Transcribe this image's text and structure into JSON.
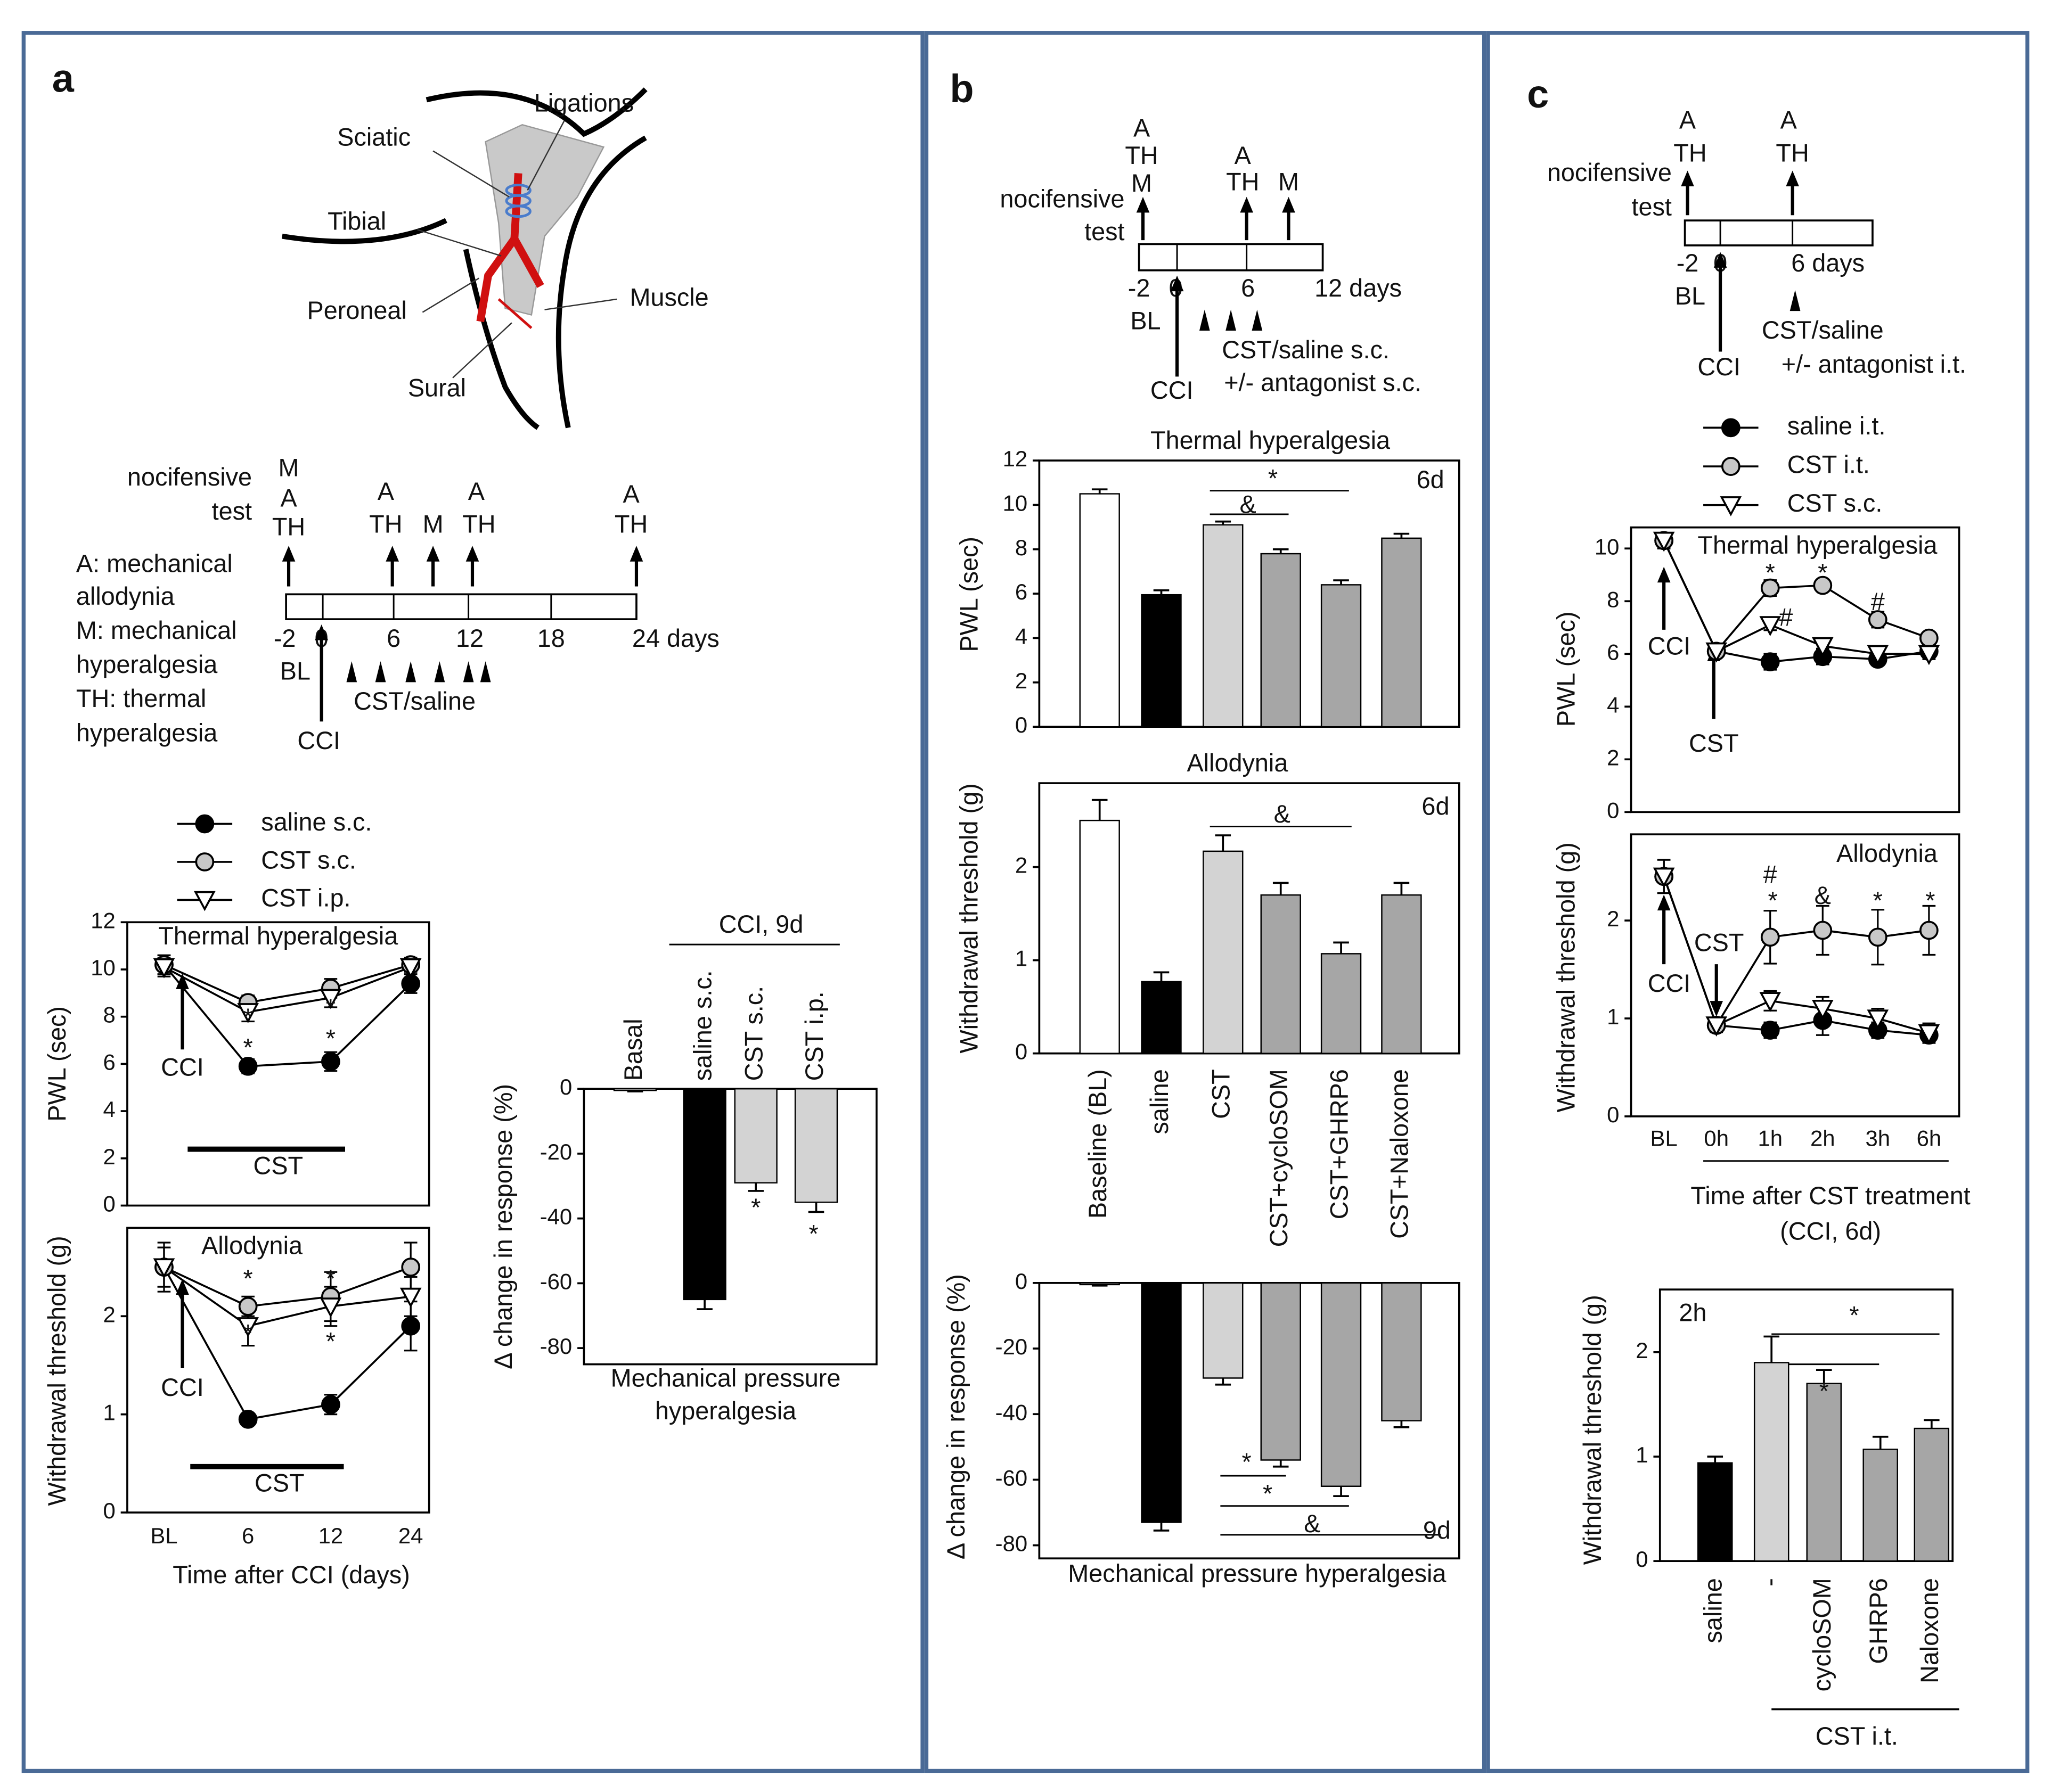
{
  "diagrams": {
    "panel_letters": [
      "a",
      "b",
      "c"
    ],
    "a_anatomy": [
      "Ligations",
      "Sciatic",
      "Tibial",
      "Peroneal",
      "Muscle",
      "Sural"
    ],
    "a_timeline": [
      "nocifensive",
      "test",
      "M",
      "A",
      "TH",
      "A",
      "TH",
      "M",
      "A",
      "TH",
      "A",
      "TH",
      "A: mechanical",
      "allodynia",
      "M: mechanical",
      "hyperalgesia",
      "TH: thermal",
      "hyperalgesia",
      "-2",
      "0",
      "6",
      "12",
      "18",
      "24 days",
      "BL",
      "CST/saline",
      "CCI"
    ],
    "b_timeline": [
      "A",
      "TH",
      "M",
      "nocifensive",
      "test",
      "A",
      "TH",
      "M",
      "-2",
      "0",
      "6",
      "12 days",
      "BL",
      "CST/saline s.c.",
      "+/- antagonist s.c.",
      "CCI"
    ],
    "c_timeline": [
      "A",
      "TH",
      "nocifensive",
      "test",
      "A",
      "TH",
      "-2",
      "0",
      "6 days",
      "BL",
      "CST/saline",
      "+/- antagonist i.t.",
      "CCI"
    ]
  },
  "chart_data": [
    {
      "type": "line",
      "title": "Thermal hyperalgesia",
      "ylabel": "PWL (sec)",
      "ylim": [
        0,
        12
      ],
      "yticks": [
        0,
        2,
        4,
        6,
        8,
        10,
        12
      ],
      "series": [
        {
          "name": "saline s.c.",
          "color": "#000000",
          "marker": "circle",
          "values": [
            10.2,
            5.9,
            6.1,
            9.4
          ],
          "errors": [
            0.4,
            0.3,
            0.4,
            0.4
          ]
        },
        {
          "name": "CST s.c.",
          "color": "#c8c8c8",
          "marker": "circle",
          "values": [
            10.2,
            8.6,
            9.2,
            10.2
          ],
          "errors": [
            0.4,
            0.3,
            0.4,
            0.3
          ]
        },
        {
          "name": "CST i.p.",
          "color": "#ffffff",
          "marker": "triangle-down",
          "values": [
            10.1,
            8.2,
            8.8,
            10.1
          ],
          "errors": [
            0.4,
            0.4,
            0.4,
            0.3
          ]
        }
      ],
      "annotations": [
        "*",
        "*",
        "*",
        "*",
        "CCI",
        "CST"
      ]
    },
    {
      "type": "line",
      "title": "Allodynia",
      "ylabel": "Withdrawal threshold (g)",
      "xlabel": [
        "Time after CCI (days)"
      ],
      "categories": [
        "BL",
        "6",
        "12",
        "24"
      ],
      "ylim": [
        0,
        2.9
      ],
      "yticks": [
        0,
        1,
        2
      ],
      "series": [
        {
          "color": "#000000",
          "marker": "circle",
          "values": [
            2.5,
            0.95,
            1.1,
            1.9
          ],
          "errors": [
            0.25,
            0.05,
            0.1,
            0.25
          ]
        },
        {
          "color": "#c8c8c8",
          "marker": "circle",
          "values": [
            2.5,
            2.1,
            2.2,
            2.5
          ],
          "errors": [
            0.2,
            0.1,
            0.25,
            0.25
          ]
        },
        {
          "color": "#ffffff",
          "marker": "triangle-down",
          "values": [
            2.5,
            1.9,
            2.1,
            2.2
          ],
          "errors": [
            0.2,
            0.2,
            0.2,
            0.2
          ]
        }
      ],
      "annotations": [
        "*",
        "*",
        "*",
        "*",
        "CCI",
        "CST"
      ]
    },
    {
      "type": "bar",
      "title": "CCI, 9d",
      "ylabel": "Δ change in response (%)",
      "xlabel": [
        "Mechanical pressure",
        "hyperalgesia"
      ],
      "categories": [
        "Basal",
        "saline s.c.",
        "CST s.c.",
        "CST i.p."
      ],
      "values": [
        -0.5,
        -65,
        -29,
        -35
      ],
      "errors": [
        0.3,
        3,
        2.5,
        3
      ],
      "colors": [
        "#ffffff",
        "#000000",
        "#d3d3d3",
        "#d3d3d3"
      ],
      "ylim": [
        -85,
        0
      ],
      "yticks": [
        -80,
        -60,
        -40,
        -20,
        0
      ],
      "annotations": [
        "*",
        "*"
      ]
    },
    {
      "type": "bar",
      "title": "Thermal hyperalgesia",
      "ylabel": "PWL (sec)",
      "values": [
        10.5,
        5.95,
        9.1,
        7.8,
        6.4,
        8.5
      ],
      "errors": [
        0.2,
        0.2,
        0.15,
        0.2,
        0.2,
        0.2
      ],
      "colors": [
        "#ffffff",
        "#000000",
        "#d3d3d3",
        "#a6a6a6",
        "#a6a6a6",
        "#a6a6a6"
      ],
      "ylim": [
        0,
        12
      ],
      "yticks": [
        0,
        2,
        4,
        6,
        8,
        10,
        12
      ],
      "annotations": [
        "*",
        "&",
        "6d"
      ]
    },
    {
      "type": "bar",
      "title": "Allodynia",
      "ylabel": "Withdrawal threshold (g)",
      "categories": [
        "Baseline (BL)",
        "saline",
        "CST",
        "CST+cycloSOM",
        "CST+GHRP6",
        "CST+Naloxone"
      ],
      "values": [
        2.5,
        0.77,
        2.17,
        1.7,
        1.07,
        1.7
      ],
      "errors": [
        0.22,
        0.1,
        0.17,
        0.13,
        0.12,
        0.13
      ],
      "colors": [
        "#ffffff",
        "#000000",
        "#d3d3d3",
        "#a6a6a6",
        "#a6a6a6",
        "#a6a6a6"
      ],
      "ylim": [
        0,
        2.9
      ],
      "yticks": [
        0,
        1,
        2
      ],
      "annotations": [
        "&",
        "6d"
      ]
    },
    {
      "type": "bar",
      "ylabel": "Δ change in response (%)",
      "xlabel": [
        "Mechanical pressure hyperalgesia"
      ],
      "values": [
        -0.5,
        -73,
        -29,
        -54,
        -62,
        -42
      ],
      "errors": [
        0.3,
        2.5,
        2,
        2,
        3,
        2
      ],
      "colors": [
        "#ffffff",
        "#000000",
        "#d3d3d3",
        "#a6a6a6",
        "#a6a6a6",
        "#a6a6a6"
      ],
      "ylim": [
        -84,
        0
      ],
      "yticks": [
        -80,
        -60,
        -40,
        -20,
        0
      ],
      "annotations": [
        "*",
        "*",
        "&",
        "9d"
      ]
    },
    {
      "type": "line",
      "title": "Thermal hyperalgesia",
      "ylabel": "PWL (sec)",
      "ylim": [
        0,
        10.8
      ],
      "yticks": [
        0,
        2,
        4,
        6,
        8,
        10
      ],
      "series": [
        {
          "name": "saline i.t.",
          "color": "#000000",
          "marker": "circle",
          "values": [
            10.3,
            6.1,
            5.7,
            5.9,
            5.8,
            6.1
          ],
          "errors": [
            0.3,
            0.2,
            0.3,
            0.3,
            0.2,
            0.3
          ]
        },
        {
          "name": "CST i.t.",
          "color": "#c8c8c8",
          "marker": "circle",
          "values": [
            10.3,
            6.1,
            8.5,
            8.6,
            7.3,
            6.6
          ],
          "errors": [
            0.3,
            0.2,
            0.3,
            0.2,
            0.3,
            0.2
          ]
        },
        {
          "name": "CST s.c.",
          "color": "#ffffff",
          "marker": "triangle-down",
          "values": [
            10.3,
            6.1,
            7.1,
            6.3,
            6.0,
            6.0
          ],
          "errors": [
            0.3,
            0.2,
            0.2,
            0.2,
            0.2,
            0.2
          ]
        }
      ],
      "annotations": [
        "*",
        "*",
        "#",
        "#",
        "CCI",
        "CST"
      ]
    },
    {
      "type": "line",
      "title": "Allodynia",
      "ylabel": "Withdrawal threshold (g)",
      "xlabel": [
        "Time after CST treatment",
        "(CCI, 6d)"
      ],
      "categories": [
        "BL",
        "0h",
        "1h",
        "2h",
        "3h",
        "6h"
      ],
      "ylim": [
        0,
        2.88
      ],
      "yticks": [
        0,
        1,
        2
      ],
      "series": [
        {
          "color": "#000000",
          "marker": "circle",
          "values": [
            2.45,
            0.93,
            0.88,
            0.98,
            0.88,
            0.83
          ],
          "errors": [
            0.17,
            0.07,
            0.08,
            0.15,
            0.08,
            0.08
          ]
        },
        {
          "color": "#c8c8c8",
          "marker": "circle",
          "values": [
            2.45,
            0.93,
            1.83,
            1.9,
            1.83,
            1.9
          ],
          "errors": [
            0.17,
            0.07,
            0.27,
            0.25,
            0.28,
            0.25
          ]
        },
        {
          "color": "#ffffff",
          "marker": "triangle-down",
          "values": [
            2.45,
            0.93,
            1.18,
            1.1,
            1.0,
            0.85
          ],
          "errors": [
            0.17,
            0.07,
            0.1,
            0.12,
            0.1,
            0.1
          ]
        }
      ],
      "annotations": [
        "*",
        "&",
        "*",
        "*",
        "#",
        "CCI",
        "CST"
      ]
    },
    {
      "type": "bar",
      "ylabel": "Withdrawal threshold (g)",
      "categories": [
        "saline",
        "-",
        "cycloSOM",
        "GHRP6",
        "Naloxone"
      ],
      "group_label": "CST i.t.",
      "values": [
        0.94,
        1.9,
        1.7,
        1.07,
        1.27
      ],
      "errors": [
        0.06,
        0.25,
        0.13,
        0.12,
        0.08
      ],
      "colors": [
        "#000000",
        "#d3d3d3",
        "#a6a6a6",
        "#a6a6a6",
        "#a6a6a6"
      ],
      "ylim": [
        0,
        2.6
      ],
      "yticks": [
        0,
        1,
        2
      ],
      "annotations": [
        "2h",
        "*",
        "*"
      ]
    }
  ]
}
